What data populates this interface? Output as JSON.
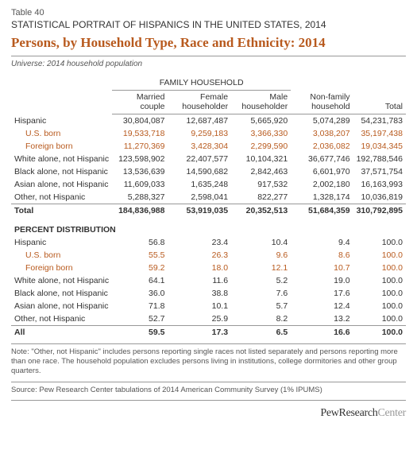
{
  "table_num": "Table 40",
  "supertitle": "STATISTICAL PORTRAIT OF HISPANICS IN THE UNITED STATES, 2014",
  "title": "Persons, by Household Type, Race and Ethnicity: 2014",
  "universe": "Universe: 2014 household population",
  "group_header": "FAMILY HOUSEHOLD",
  "columns": [
    "Married couple",
    "Female householder",
    "Male householder",
    "Non-family household",
    "Total"
  ],
  "rows_counts": [
    {
      "label": "Hispanic",
      "vals": [
        "30,804,087",
        "12,687,487",
        "5,665,920",
        "5,074,289",
        "54,231,783"
      ]
    },
    {
      "label": "U.S. born",
      "indent": true,
      "vals": [
        "19,533,718",
        "9,259,183",
        "3,366,330",
        "3,038,207",
        "35,197,438"
      ]
    },
    {
      "label": "Foreign born",
      "indent": true,
      "vals": [
        "11,270,369",
        "3,428,304",
        "2,299,590",
        "2,036,082",
        "19,034,345"
      ]
    },
    {
      "label": "White alone, not Hispanic",
      "vals": [
        "123,598,902",
        "22,407,577",
        "10,104,321",
        "36,677,746",
        "192,788,546"
      ]
    },
    {
      "label": "Black alone, not Hispanic",
      "vals": [
        "13,536,639",
        "14,590,682",
        "2,842,463",
        "6,601,970",
        "37,571,754"
      ]
    },
    {
      "label": "Asian alone, not Hispanic",
      "vals": [
        "11,609,033",
        "1,635,248",
        "917,532",
        "2,002,180",
        "16,163,993"
      ]
    },
    {
      "label": "Other, not Hispanic",
      "vals": [
        "5,288,327",
        "2,598,041",
        "822,277",
        "1,328,174",
        "10,036,819"
      ]
    }
  ],
  "total_counts": {
    "label": "Total",
    "vals": [
      "184,836,988",
      "53,919,035",
      "20,352,513",
      "51,684,359",
      "310,792,895"
    ]
  },
  "percent_label": "PERCENT DISTRIBUTION",
  "rows_pct": [
    {
      "label": "Hispanic",
      "vals": [
        "56.8",
        "23.4",
        "10.4",
        "9.4",
        "100.0"
      ]
    },
    {
      "label": "U.S. born",
      "indent": true,
      "vals": [
        "55.5",
        "26.3",
        "9.6",
        "8.6",
        "100.0"
      ]
    },
    {
      "label": "Foreign born",
      "indent": true,
      "vals": [
        "59.2",
        "18.0",
        "12.1",
        "10.7",
        "100.0"
      ]
    },
    {
      "label": "White alone, not Hispanic",
      "vals": [
        "64.1",
        "11.6",
        "5.2",
        "19.0",
        "100.0"
      ]
    },
    {
      "label": "Black alone, not Hispanic",
      "vals": [
        "36.0",
        "38.8",
        "7.6",
        "17.6",
        "100.0"
      ]
    },
    {
      "label": "Asian alone, not Hispanic",
      "vals": [
        "71.8",
        "10.1",
        "5.7",
        "12.4",
        "100.0"
      ]
    },
    {
      "label": "Other, not Hispanic",
      "vals": [
        "52.7",
        "25.9",
        "8.2",
        "13.2",
        "100.0"
      ]
    }
  ],
  "total_pct": {
    "label": "All",
    "vals": [
      "59.5",
      "17.3",
      "6.5",
      "16.6",
      "100.0"
    ]
  },
  "note": "Note: \"Other, not Hispanic\" includes persons reporting single races not listed separately and persons reporting more than one race. The household population excludes persons living in institutions, college dormitories and other group quarters.",
  "source": "Source: Pew Research Center tabulations of 2014 American Community Survey (1% IPUMS)",
  "footer1": "PewResearch",
  "footer2": "Center",
  "colors": {
    "accent": "#b85a1e",
    "text": "#333333",
    "muted": "#555555",
    "rule": "#999999"
  }
}
